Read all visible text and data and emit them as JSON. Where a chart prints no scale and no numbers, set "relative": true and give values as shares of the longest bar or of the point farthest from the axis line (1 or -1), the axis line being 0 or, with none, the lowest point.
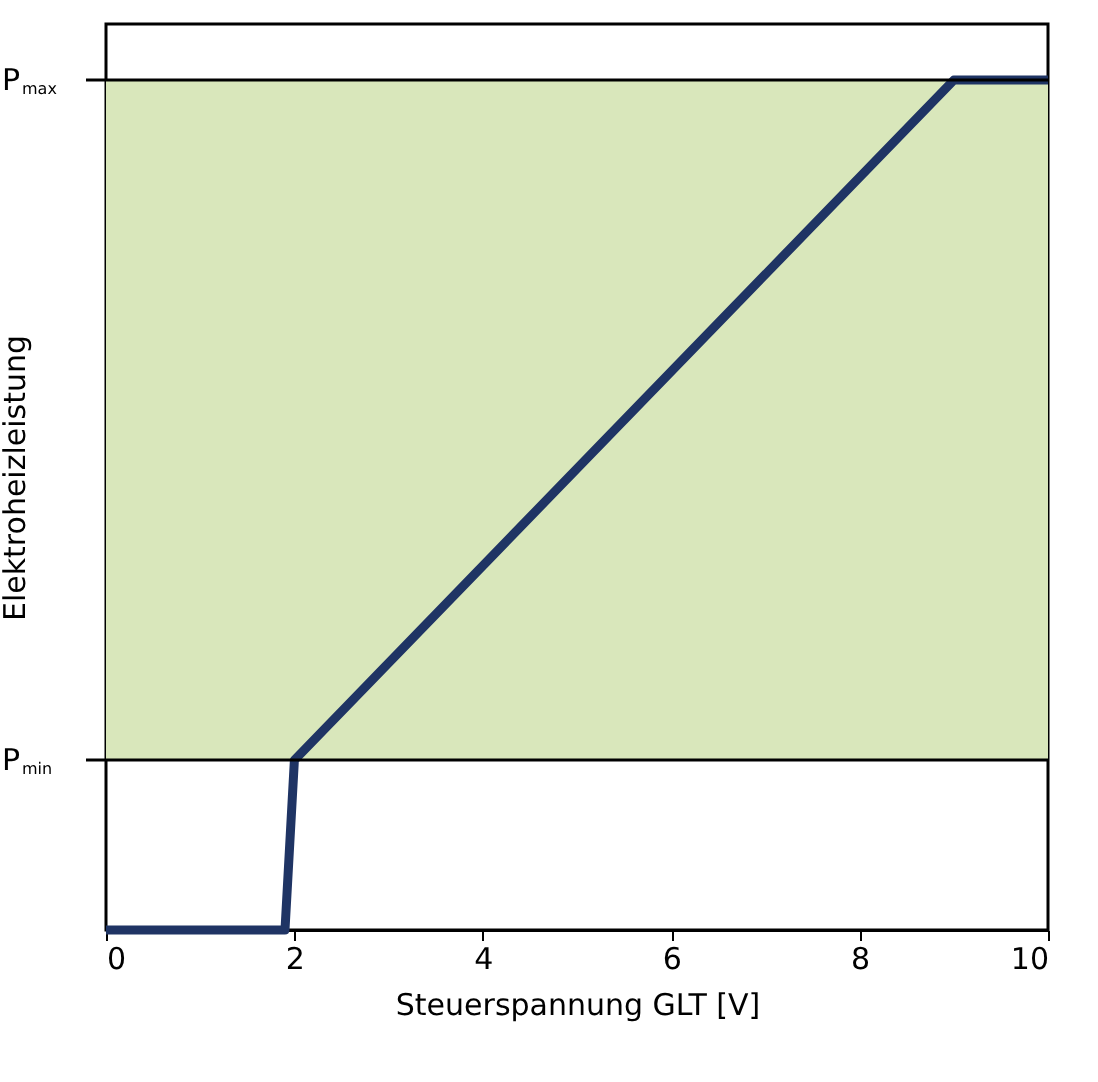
{
  "chart_data": {
    "type": "line",
    "relative": true,
    "xlabel": "Steuerspannung GLT [V]",
    "ylabel": "Elektroheizleistung",
    "x": [
      0,
      1.9,
      2,
      9,
      10
    ],
    "series": [
      {
        "color": "#1f3464",
        "values": [
          0,
          0,
          0.2,
          1,
          1
        ]
      }
    ],
    "xlim": [
      0,
      10
    ],
    "xticks": [
      0,
      2,
      4,
      6,
      8,
      10
    ],
    "grid": false,
    "line_style": "solid",
    "marker": "none",
    "bands": [
      {
        "axis": "y",
        "from": 0.2,
        "to": 1,
        "color": "#d9e7bb"
      }
    ],
    "ref_lines": [
      {
        "axis": "y",
        "value": 0.2,
        "label": "P$_{min}$",
        "color": "#000000"
      },
      {
        "axis": "y",
        "value": 1,
        "label": "P$_{max}$",
        "color": "#000000"
      }
    ]
  }
}
